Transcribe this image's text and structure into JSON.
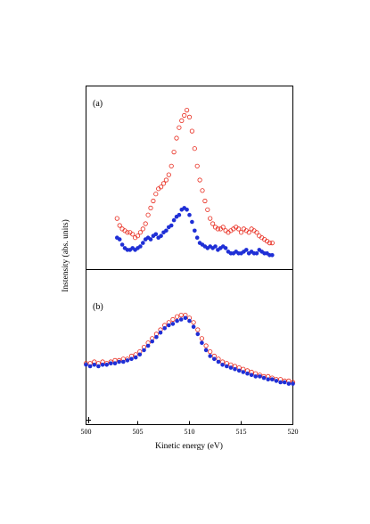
{
  "chart_data": [
    {
      "type": "scatter",
      "panel_label": "(a)",
      "xlim": [
        500,
        520
      ],
      "ylim": [
        0,
        1
      ],
      "grid": false,
      "series": [
        {
          "marker": "open-circle",
          "color": "#e8291c",
          "x": [
            503.0,
            503.25,
            503.5,
            503.75,
            504.0,
            504.25,
            504.5,
            504.75,
            505.0,
            505.25,
            505.5,
            505.75,
            506.0,
            506.25,
            506.5,
            506.75,
            507.0,
            507.25,
            507.5,
            507.75,
            508.0,
            508.25,
            508.5,
            508.75,
            509.0,
            509.25,
            509.5,
            509.75,
            510.0,
            510.25,
            510.5,
            510.75,
            511.0,
            511.25,
            511.5,
            511.75,
            512.0,
            512.25,
            512.5,
            512.75,
            513.0,
            513.25,
            513.5,
            513.75,
            514.0,
            514.25,
            514.5,
            514.75,
            515.0,
            515.25,
            515.5,
            515.75,
            516.0,
            516.25,
            516.5,
            516.75,
            517.0,
            517.25,
            517.5,
            517.75,
            518.0
          ],
          "y": [
            0.28,
            0.24,
            0.22,
            0.21,
            0.2,
            0.2,
            0.19,
            0.17,
            0.18,
            0.2,
            0.22,
            0.25,
            0.3,
            0.34,
            0.38,
            0.42,
            0.45,
            0.46,
            0.48,
            0.5,
            0.53,
            0.58,
            0.66,
            0.74,
            0.8,
            0.84,
            0.87,
            0.9,
            0.86,
            0.78,
            0.68,
            0.58,
            0.5,
            0.44,
            0.38,
            0.33,
            0.28,
            0.25,
            0.23,
            0.22,
            0.22,
            0.23,
            0.21,
            0.2,
            0.21,
            0.22,
            0.23,
            0.22,
            0.2,
            0.22,
            0.21,
            0.2,
            0.22,
            0.21,
            0.2,
            0.18,
            0.17,
            0.16,
            0.15,
            0.14,
            0.14
          ]
        },
        {
          "marker": "filled-circle",
          "color": "#1f2fd6",
          "x": [
            503.0,
            503.25,
            503.5,
            503.75,
            504.0,
            504.25,
            504.5,
            504.75,
            505.0,
            505.25,
            505.5,
            505.75,
            506.0,
            506.25,
            506.5,
            506.75,
            507.0,
            507.25,
            507.5,
            507.75,
            508.0,
            508.25,
            508.5,
            508.75,
            509.0,
            509.25,
            509.5,
            509.75,
            510.0,
            510.25,
            510.5,
            510.75,
            511.0,
            511.25,
            511.5,
            511.75,
            512.0,
            512.25,
            512.5,
            512.75,
            513.0,
            513.25,
            513.5,
            513.75,
            514.0,
            514.25,
            514.5,
            514.75,
            515.0,
            515.25,
            515.5,
            515.75,
            516.0,
            516.25,
            516.5,
            516.75,
            517.0,
            517.25,
            517.5,
            517.75,
            518.0
          ],
          "y": [
            0.17,
            0.16,
            0.13,
            0.11,
            0.1,
            0.1,
            0.11,
            0.1,
            0.11,
            0.12,
            0.14,
            0.16,
            0.17,
            0.16,
            0.18,
            0.19,
            0.17,
            0.18,
            0.2,
            0.21,
            0.23,
            0.24,
            0.27,
            0.29,
            0.3,
            0.33,
            0.34,
            0.33,
            0.3,
            0.26,
            0.21,
            0.17,
            0.14,
            0.13,
            0.12,
            0.11,
            0.12,
            0.11,
            0.12,
            0.1,
            0.11,
            0.12,
            0.11,
            0.09,
            0.08,
            0.08,
            0.09,
            0.08,
            0.08,
            0.09,
            0.1,
            0.08,
            0.09,
            0.08,
            0.08,
            0.1,
            0.09,
            0.08,
            0.08,
            0.07,
            0.07
          ]
        }
      ]
    },
    {
      "type": "scatter",
      "panel_label": "(b)",
      "xlim": [
        500,
        520
      ],
      "ylim": [
        0,
        1
      ],
      "grid": false,
      "series": [
        {
          "marker": "open-circle",
          "color": "#e8291c",
          "x": [
            500.0,
            500.4,
            500.8,
            501.2,
            501.6,
            502.0,
            502.4,
            502.8,
            503.2,
            503.6,
            504.0,
            504.4,
            504.8,
            505.2,
            505.6,
            506.0,
            506.4,
            506.8,
            507.2,
            507.6,
            508.0,
            508.4,
            508.8,
            509.2,
            509.6,
            510.0,
            510.4,
            510.8,
            511.2,
            511.6,
            512.0,
            512.4,
            512.8,
            513.2,
            513.6,
            514.0,
            514.4,
            514.8,
            515.2,
            515.6,
            516.0,
            516.4,
            516.8,
            517.2,
            517.6,
            518.0,
            518.4,
            518.8,
            519.2,
            519.6,
            520.0
          ],
          "y": [
            0.38,
            0.38,
            0.39,
            0.38,
            0.39,
            0.38,
            0.39,
            0.4,
            0.4,
            0.41,
            0.41,
            0.43,
            0.44,
            0.46,
            0.49,
            0.52,
            0.55,
            0.58,
            0.61,
            0.64,
            0.66,
            0.68,
            0.7,
            0.71,
            0.71,
            0.69,
            0.66,
            0.61,
            0.55,
            0.5,
            0.46,
            0.43,
            0.41,
            0.39,
            0.38,
            0.37,
            0.36,
            0.35,
            0.34,
            0.33,
            0.32,
            0.31,
            0.3,
            0.29,
            0.29,
            0.28,
            0.27,
            0.27,
            0.26,
            0.26,
            0.25
          ]
        },
        {
          "marker": "filled-circle",
          "color": "#1f2fd6",
          "x": [
            500.0,
            500.4,
            500.8,
            501.2,
            501.6,
            502.0,
            502.4,
            502.8,
            503.2,
            503.6,
            504.0,
            504.4,
            504.8,
            505.2,
            505.6,
            506.0,
            506.4,
            506.8,
            507.2,
            507.6,
            508.0,
            508.4,
            508.8,
            509.2,
            509.6,
            510.0,
            510.4,
            510.8,
            511.2,
            511.6,
            512.0,
            512.4,
            512.8,
            513.2,
            513.6,
            514.0,
            514.4,
            514.8,
            515.2,
            515.6,
            516.0,
            516.4,
            516.8,
            517.2,
            517.6,
            518.0,
            518.4,
            518.8,
            519.2,
            519.6,
            520.0
          ],
          "y": [
            0.37,
            0.36,
            0.37,
            0.36,
            0.37,
            0.37,
            0.38,
            0.38,
            0.39,
            0.39,
            0.4,
            0.41,
            0.42,
            0.44,
            0.47,
            0.5,
            0.53,
            0.56,
            0.59,
            0.62,
            0.64,
            0.65,
            0.67,
            0.68,
            0.69,
            0.67,
            0.63,
            0.58,
            0.52,
            0.47,
            0.43,
            0.41,
            0.39,
            0.37,
            0.36,
            0.35,
            0.34,
            0.33,
            0.32,
            0.31,
            0.3,
            0.29,
            0.29,
            0.28,
            0.27,
            0.27,
            0.26,
            0.25,
            0.25,
            0.24,
            0.24
          ]
        }
      ]
    }
  ],
  "axes": {
    "xlabel": "Kinetic energy (eV)",
    "ylabel": "Instensity (abs. units)",
    "x_ticks": [
      "500",
      "505",
      "510",
      "515",
      "520"
    ],
    "x_tick_values": [
      500,
      505,
      510,
      515,
      520
    ]
  }
}
